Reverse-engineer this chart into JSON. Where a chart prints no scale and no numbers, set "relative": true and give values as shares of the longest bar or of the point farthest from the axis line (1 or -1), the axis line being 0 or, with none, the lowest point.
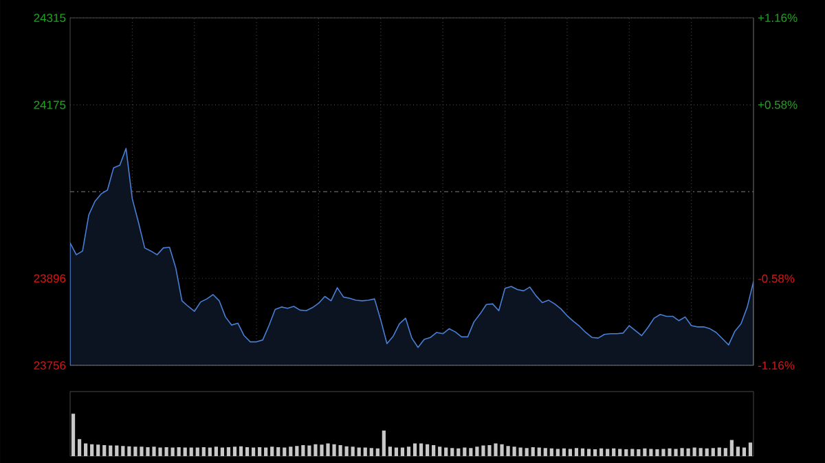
{
  "chart_data": [
    {
      "type": "area",
      "color": "#4a7fd6",
      "categories": [
        null,
        null,
        null,
        null,
        null,
        null,
        null,
        null,
        null,
        null,
        null,
        null,
        null,
        null,
        null,
        null,
        null,
        null,
        null,
        null,
        null,
        null,
        null,
        null,
        null,
        null,
        null,
        null,
        null,
        null,
        null,
        null,
        null,
        null,
        null,
        null,
        null,
        null,
        null,
        null,
        null,
        null,
        null,
        null,
        null,
        null,
        null,
        null,
        null,
        null,
        null,
        null,
        null,
        null,
        null,
        null,
        null,
        null,
        null,
        null,
        null,
        null,
        null,
        null,
        null,
        null,
        null,
        null,
        null,
        null,
        null,
        null,
        null,
        null,
        null,
        null,
        null,
        null,
        null,
        null,
        null,
        null,
        null,
        null,
        null,
        null,
        null,
        null,
        null,
        null,
        null,
        null,
        null,
        null,
        null,
        null,
        null,
        null,
        null,
        null,
        null,
        null,
        null,
        null,
        null,
        null,
        null,
        null,
        null,
        null,
        null
      ],
      "values": [
        23953,
        23934,
        23940,
        23998,
        24020,
        24032,
        24038,
        24074,
        24078,
        24105,
        24024,
        23986,
        23945,
        23940,
        23934,
        23945,
        23946,
        23913,
        23860,
        23851,
        23843,
        23858,
        23863,
        23870,
        23860,
        23834,
        23821,
        23824,
        23804,
        23794,
        23794,
        23797,
        23820,
        23846,
        23850,
        23848,
        23851,
        23845,
        23844,
        23849,
        23856,
        23867,
        23860,
        23881,
        23866,
        23864,
        23861,
        23860,
        23861,
        23863,
        23829,
        23791,
        23803,
        23823,
        23832,
        23800,
        23785,
        23798,
        23801,
        23809,
        23807,
        23815,
        23810,
        23802,
        23802,
        23826,
        23839,
        23854,
        23855,
        23844,
        23880,
        23883,
        23878,
        23876,
        23882,
        23868,
        23857,
        23861,
        23855,
        23847,
        23836,
        23827,
        23819,
        23809,
        23801,
        23800,
        23806,
        23807,
        23807,
        23808,
        23820,
        23812,
        23804,
        23817,
        23832,
        23838,
        23835,
        23835,
        23828,
        23834,
        23820,
        23818,
        23818,
        23815,
        23809,
        23799,
        23789,
        23811,
        23823,
        23850,
        23891
      ],
      "ylim": [
        23756,
        24315
      ],
      "yticks": [
        23756,
        23896,
        24175,
        24315
      ],
      "y2lim": [
        -1.16,
        1.16
      ],
      "y2ticks": [
        {
          "value": -1.16,
          "label": "-1.16%"
        },
        {
          "value": -0.58,
          "label": "-0.58%"
        },
        {
          "value": 0.58,
          "label": "+0.58%"
        },
        {
          "value": 1.16,
          "label": "+1.16%"
        }
      ],
      "grid": true,
      "ref_lines": [
        {
          "axis": "y",
          "value": 24035.5,
          "color": "#808080",
          "line_style": "dashed"
        }
      ]
    },
    {
      "type": "bar",
      "relative": true,
      "color": "#c8c8c8",
      "categories": [
        null,
        null,
        null,
        null,
        null,
        null,
        null,
        null,
        null,
        null,
        null,
        null,
        null,
        null,
        null,
        null,
        null,
        null,
        null,
        null,
        null,
        null,
        null,
        null,
        null,
        null,
        null,
        null,
        null,
        null,
        null,
        null,
        null,
        null,
        null,
        null,
        null,
        null,
        null,
        null,
        null,
        null,
        null,
        null,
        null,
        null,
        null,
        null,
        null,
        null,
        null,
        null,
        null,
        null,
        null,
        null,
        null,
        null,
        null,
        null,
        null,
        null,
        null,
        null,
        null,
        null,
        null,
        null,
        null,
        null,
        null,
        null,
        null,
        null,
        null,
        null,
        null,
        null,
        null,
        null,
        null,
        null,
        null,
        null,
        null,
        null,
        null,
        null,
        null,
        null,
        null,
        null,
        null,
        null,
        null,
        null,
        null,
        null,
        null,
        null,
        null,
        null,
        null,
        null,
        null,
        null,
        null,
        null,
        null,
        null
      ],
      "values": [
        1.0,
        0.4,
        0.3,
        0.28,
        0.27,
        0.26,
        0.25,
        0.25,
        0.24,
        0.23,
        0.22,
        0.22,
        0.21,
        0.22,
        0.2,
        0.21,
        0.2,
        0.21,
        0.2,
        0.2,
        0.2,
        0.21,
        0.2,
        0.22,
        0.2,
        0.21,
        0.22,
        0.23,
        0.21,
        0.2,
        0.21,
        0.2,
        0.22,
        0.21,
        0.2,
        0.22,
        0.24,
        0.26,
        0.25,
        0.28,
        0.27,
        0.3,
        0.28,
        0.26,
        0.23,
        0.22,
        0.2,
        0.2,
        0.19,
        0.18,
        0.6,
        0.22,
        0.2,
        0.2,
        0.22,
        0.3,
        0.3,
        0.28,
        0.26,
        0.22,
        0.2,
        0.19,
        0.18,
        0.2,
        0.19,
        0.22,
        0.25,
        0.26,
        0.3,
        0.28,
        0.24,
        0.22,
        0.2,
        0.19,
        0.21,
        0.2,
        0.19,
        0.18,
        0.17,
        0.18,
        0.17,
        0.19,
        0.18,
        0.17,
        0.16,
        0.18,
        0.17,
        0.18,
        0.17,
        0.16,
        0.17,
        0.16,
        0.18,
        0.17,
        0.16,
        0.17,
        0.18,
        0.17,
        0.19,
        0.18,
        0.2,
        0.19,
        0.18,
        0.19,
        0.2,
        0.19,
        0.38,
        0.22,
        0.2,
        0.32
      ]
    }
  ]
}
